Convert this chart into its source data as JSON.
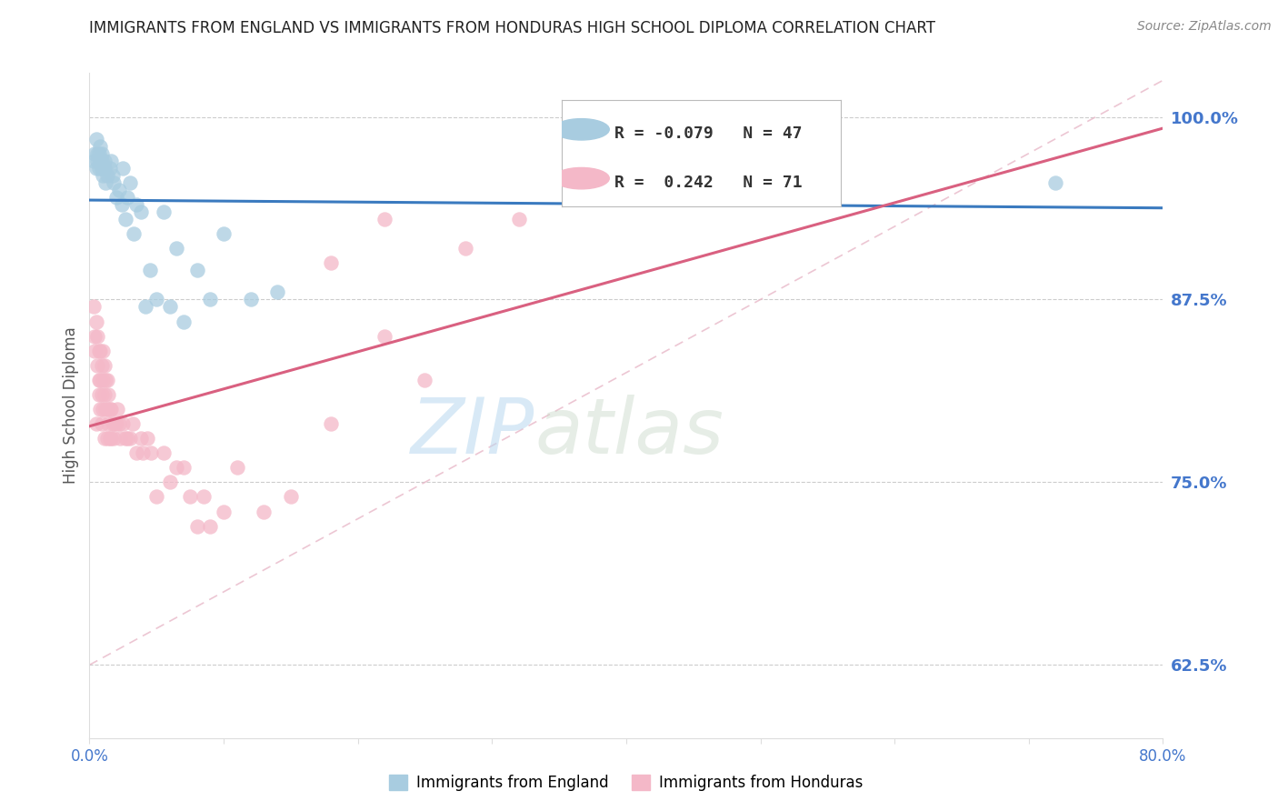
{
  "title": "IMMIGRANTS FROM ENGLAND VS IMMIGRANTS FROM HONDURAS HIGH SCHOOL DIPLOMA CORRELATION CHART",
  "source": "Source: ZipAtlas.com",
  "ylabel": "High School Diploma",
  "ytick_labels": [
    "100.0%",
    "87.5%",
    "75.0%",
    "62.5%"
  ],
  "ytick_values": [
    1.0,
    0.875,
    0.75,
    0.625
  ],
  "legend_england": "Immigrants from England",
  "legend_honduras": "Immigrants from Honduras",
  "R_england": -0.079,
  "N_england": 47,
  "R_honduras": 0.242,
  "N_honduras": 71,
  "color_england": "#a8cce0",
  "color_honduras": "#f4b8c8",
  "color_england_line": "#3a7abf",
  "color_honduras_line": "#d96080",
  "color_diag_line": "#e8b8c8",
  "watermark_zip": "ZIP",
  "watermark_atlas": "atlas",
  "title_color": "#222222",
  "source_color": "#888888",
  "axis_label_color": "#4477cc",
  "background_color": "#ffffff",
  "xlim": [
    0.0,
    0.8
  ],
  "ylim": [
    0.575,
    1.03
  ],
  "england_x": [
    0.003,
    0.004,
    0.005,
    0.005,
    0.006,
    0.006,
    0.007,
    0.007,
    0.008,
    0.008,
    0.009,
    0.009,
    0.009,
    0.01,
    0.01,
    0.011,
    0.011,
    0.012,
    0.013,
    0.015,
    0.016,
    0.017,
    0.018,
    0.02,
    0.022,
    0.024,
    0.025,
    0.027,
    0.028,
    0.03,
    0.033,
    0.035,
    0.038,
    0.042,
    0.045,
    0.05,
    0.055,
    0.06,
    0.065,
    0.07,
    0.08,
    0.09,
    0.1,
    0.12,
    0.14,
    0.55,
    0.72
  ],
  "england_y": [
    0.97,
    0.975,
    0.985,
    0.965,
    0.975,
    0.97,
    0.965,
    0.975,
    0.97,
    0.98,
    0.965,
    0.97,
    0.975,
    0.96,
    0.965,
    0.965,
    0.97,
    0.955,
    0.96,
    0.965,
    0.97,
    0.96,
    0.955,
    0.945,
    0.95,
    0.94,
    0.965,
    0.93,
    0.945,
    0.955,
    0.92,
    0.94,
    0.935,
    0.87,
    0.895,
    0.875,
    0.935,
    0.87,
    0.91,
    0.86,
    0.895,
    0.875,
    0.92,
    0.875,
    0.88,
    1.0,
    0.955
  ],
  "honduras_x": [
    0.003,
    0.004,
    0.004,
    0.005,
    0.005,
    0.006,
    0.006,
    0.007,
    0.007,
    0.007,
    0.008,
    0.008,
    0.008,
    0.009,
    0.009,
    0.009,
    0.01,
    0.01,
    0.01,
    0.011,
    0.011,
    0.011,
    0.012,
    0.012,
    0.013,
    0.013,
    0.013,
    0.014,
    0.014,
    0.015,
    0.015,
    0.016,
    0.016,
    0.017,
    0.018,
    0.019,
    0.02,
    0.021,
    0.022,
    0.023,
    0.025,
    0.027,
    0.028,
    0.03,
    0.032,
    0.035,
    0.038,
    0.04,
    0.043,
    0.046,
    0.05,
    0.055,
    0.06,
    0.065,
    0.07,
    0.075,
    0.08,
    0.085,
    0.09,
    0.1,
    0.11,
    0.13,
    0.15,
    0.18,
    0.22,
    0.25,
    0.28,
    0.32,
    0.38,
    0.18,
    0.22
  ],
  "honduras_y": [
    0.87,
    0.85,
    0.84,
    0.86,
    0.79,
    0.85,
    0.83,
    0.82,
    0.84,
    0.81,
    0.84,
    0.82,
    0.8,
    0.83,
    0.81,
    0.79,
    0.84,
    0.82,
    0.8,
    0.83,
    0.81,
    0.78,
    0.82,
    0.8,
    0.82,
    0.8,
    0.78,
    0.81,
    0.79,
    0.8,
    0.78,
    0.8,
    0.78,
    0.79,
    0.78,
    0.79,
    0.79,
    0.8,
    0.79,
    0.78,
    0.79,
    0.78,
    0.78,
    0.78,
    0.79,
    0.77,
    0.78,
    0.77,
    0.78,
    0.77,
    0.74,
    0.77,
    0.75,
    0.76,
    0.76,
    0.74,
    0.72,
    0.74,
    0.72,
    0.73,
    0.76,
    0.73,
    0.74,
    0.79,
    0.85,
    0.82,
    0.91,
    0.93,
    0.97,
    0.9,
    0.93
  ]
}
